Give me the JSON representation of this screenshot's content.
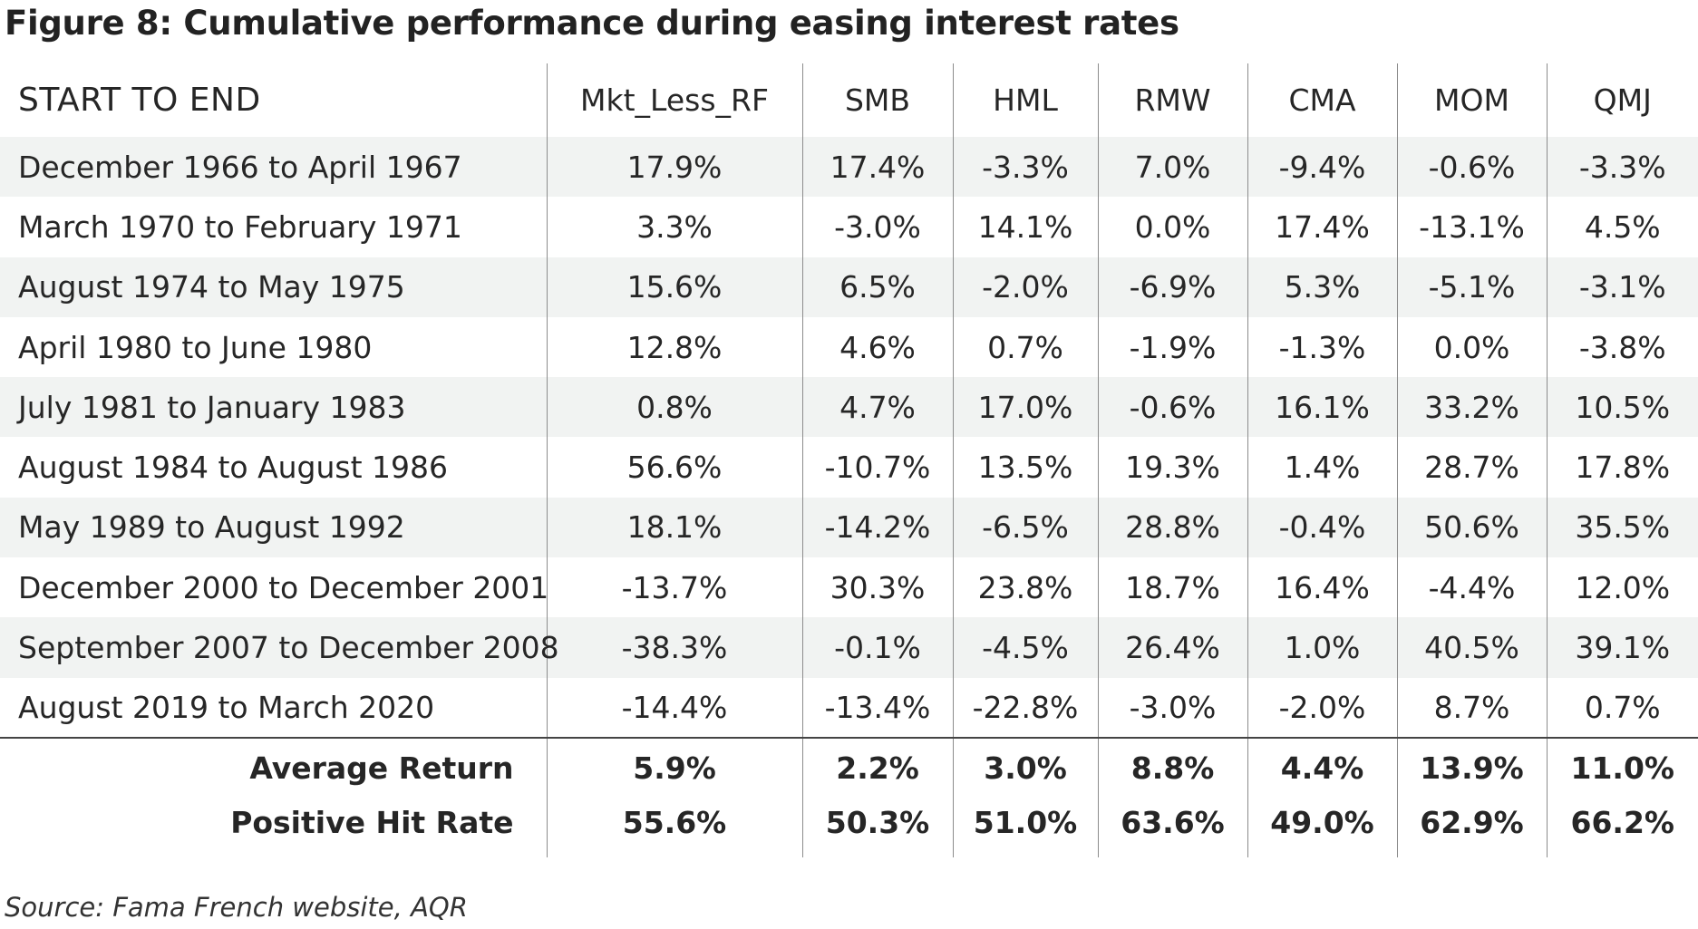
{
  "title": "Figure 8: Cumulative performance during easing interest rates",
  "source": "Source: Fama French website, AQR",
  "chart_data": {
    "type": "table",
    "title": "Figure 8: Cumulative performance during easing interest rates",
    "columns": [
      "START TO END",
      "Mkt_Less_RF",
      "SMB",
      "HML",
      "RMW",
      "CMA",
      "MOM",
      "QMJ"
    ],
    "rows": [
      {
        "period": "December 1966 to April 1967",
        "values": [
          "17.9%",
          "17.4%",
          "-3.3%",
          "7.0%",
          "-9.4%",
          "-0.6%",
          "-3.3%"
        ]
      },
      {
        "period": "March 1970 to February 1971",
        "values": [
          "3.3%",
          "-3.0%",
          "14.1%",
          "0.0%",
          "17.4%",
          "-13.1%",
          "4.5%"
        ]
      },
      {
        "period": "August 1974 to May 1975",
        "values": [
          "15.6%",
          "6.5%",
          "-2.0%",
          "-6.9%",
          "5.3%",
          "-5.1%",
          "-3.1%"
        ]
      },
      {
        "period": "April 1980 to June 1980",
        "values": [
          "12.8%",
          "4.6%",
          "0.7%",
          "-1.9%",
          "-1.3%",
          "0.0%",
          "-3.8%"
        ]
      },
      {
        "period": "July 1981 to January 1983",
        "values": [
          "0.8%",
          "4.7%",
          "17.0%",
          "-0.6%",
          "16.1%",
          "33.2%",
          "10.5%"
        ]
      },
      {
        "period": "August 1984 to August 1986",
        "values": [
          "56.6%",
          "-10.7%",
          "13.5%",
          "19.3%",
          "1.4%",
          "28.7%",
          "17.8%"
        ]
      },
      {
        "period": "May 1989 to August 1992",
        "values": [
          "18.1%",
          "-14.2%",
          "-6.5%",
          "28.8%",
          "-0.4%",
          "50.6%",
          "35.5%"
        ]
      },
      {
        "period": "December 2000 to December 2001",
        "values": [
          "-13.7%",
          "30.3%",
          "23.8%",
          "18.7%",
          "16.4%",
          "-4.4%",
          "12.0%"
        ]
      },
      {
        "period": "September 2007 to December 2008",
        "values": [
          "-38.3%",
          "-0.1%",
          "-4.5%",
          "26.4%",
          "1.0%",
          "40.5%",
          "39.1%"
        ]
      },
      {
        "period": "August 2019 to March 2020",
        "values": [
          "-14.4%",
          "-13.4%",
          "-22.8%",
          "-3.0%",
          "-2.0%",
          "8.7%",
          "0.7%"
        ]
      }
    ],
    "summary": [
      {
        "label": "Average Return",
        "values": [
          "5.9%",
          "2.2%",
          "3.0%",
          "8.8%",
          "4.4%",
          "13.9%",
          "11.0%"
        ]
      },
      {
        "label": "Positive Hit Rate",
        "values": [
          "55.6%",
          "50.3%",
          "51.0%",
          "63.6%",
          "49.0%",
          "62.9%",
          "66.2%"
        ]
      }
    ]
  }
}
